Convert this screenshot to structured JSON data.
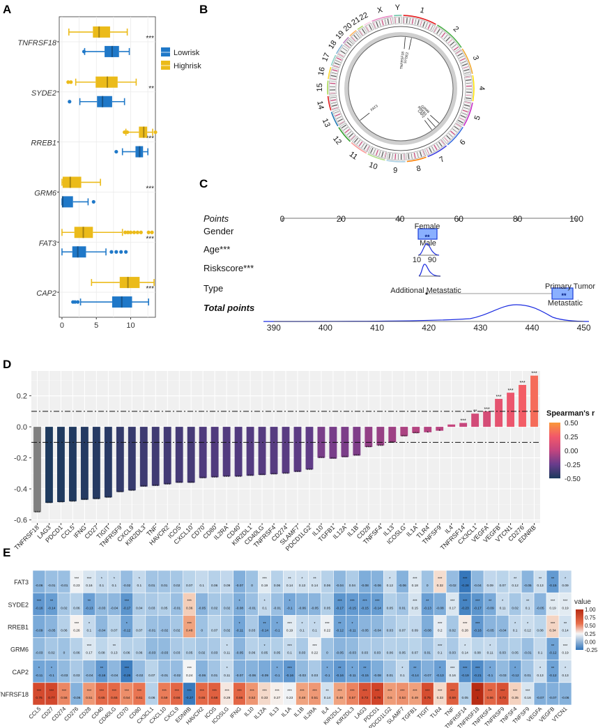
{
  "panels": {
    "A": "A",
    "B": "B",
    "C": "C",
    "D": "D",
    "E": "E"
  },
  "chart_data": [
    {
      "panel": "A",
      "type": "boxplot",
      "orientation": "horizontal",
      "genes": [
        "TNFRSF18",
        "SYDE2",
        "RREB1",
        "GRM6",
        "FAT3",
        "CAP2"
      ],
      "significance": [
        "***",
        "**",
        "***",
        "***",
        "***",
        "***"
      ],
      "legend": {
        "title": "",
        "items": [
          {
            "name": "Lowrisk",
            "color": "#1f78c8"
          },
          {
            "name": "Highrisk",
            "color": "#ebbb1a"
          }
        ]
      },
      "xticks": [
        0,
        5,
        10
      ],
      "xlim": [
        -0.4,
        13.6
      ],
      "boxes": {
        "TNFRSF18": {
          "Highrisk": {
            "wl": 1.0,
            "q1": 4.5,
            "med": 5.4,
            "q3": 7.0,
            "wh": 9.5,
            "out": []
          },
          "Lowrisk": {
            "wl": 3.3,
            "q1": 6.2,
            "med": 7.3,
            "q3": 8.3,
            "wh": 9.8,
            "out": [
              3.2
            ]
          }
        },
        "SYDE2": {
          "Highrisk": {
            "wl": 2.0,
            "q1": 4.9,
            "med": 6.6,
            "q3": 8.1,
            "wh": 10.8,
            "out": [
              0.9,
              1.3
            ]
          },
          "Lowrisk": {
            "wl": 2.6,
            "q1": 5.1,
            "med": 5.9,
            "q3": 7.3,
            "wh": 9.1,
            "out": [
              1.1
            ]
          }
        },
        "RREB1": {
          "Highrisk": {
            "wl": 9.3,
            "q1": 11.2,
            "med": 11.9,
            "q3": 12.4,
            "wh": 13.2,
            "out": [
              9.1,
              9.5,
              13.6
            ]
          },
          "Lowrisk": {
            "wl": 8.8,
            "q1": 10.7,
            "med": 11.3,
            "q3": 11.8,
            "wh": 12.5,
            "out": [
              7.9
            ]
          }
        },
        "GRM6": {
          "Highrisk": {
            "wl": 0.0,
            "q1": 0.1,
            "med": 1.2,
            "q3": 2.8,
            "wh": 5.6,
            "out": []
          },
          "Lowrisk": {
            "wl": 0.0,
            "q1": 0.0,
            "med": 0.1,
            "q3": 1.6,
            "wh": 3.8,
            "out": [
              4.6
            ]
          }
        },
        "FAT3": {
          "Highrisk": {
            "wl": 0.0,
            "q1": 1.8,
            "med": 3.1,
            "q3": 4.5,
            "wh": 8.8,
            "out": [
              9.2,
              9.6,
              10.0,
              10.5,
              11.0,
              11.5,
              12.6,
              13.1
            ]
          },
          "Lowrisk": {
            "wl": 0.0,
            "q1": 1.5,
            "med": 2.3,
            "q3": 3.5,
            "wh": 6.4,
            "out": [
              7.2,
              7.9,
              8.6,
              9.3
            ]
          }
        },
        "CAP2": {
          "Highrisk": {
            "wl": 4.3,
            "q1": 8.4,
            "med": 9.6,
            "q3": 11.3,
            "wh": 13.4,
            "out": []
          },
          "Lowrisk": {
            "wl": 2.7,
            "q1": 7.3,
            "med": 8.7,
            "q3": 10.2,
            "wh": 12.6,
            "out": [
              1.6,
              1.9,
              2.3
            ]
          }
        }
      }
    },
    {
      "panel": "B",
      "type": "circos",
      "chromosomes": [
        "1",
        "2",
        "3",
        "4",
        "5",
        "6",
        "7",
        "8",
        "9",
        "10",
        "11",
        "12",
        "13",
        "14",
        "15",
        "16",
        "17",
        "18",
        "19",
        "20",
        "21",
        "22",
        "X",
        "Y"
      ],
      "labels": [
        "TNFRSF18",
        "SYDE2",
        "GRM6",
        "RREB1",
        "CAP2",
        "FAT3"
      ]
    },
    {
      "panel": "C",
      "type": "nomogram",
      "rows": {
        "points": "Points",
        "gender": "Gender",
        "age": "Age***",
        "risk": "Riskscore***",
        "type": "Type",
        "total": "Total points"
      },
      "points_axis": [
        0,
        20,
        40,
        60,
        80,
        100
      ],
      "total_axis": [
        390,
        400,
        410,
        420,
        430,
        440,
        450
      ],
      "gender_levels": [
        "Female",
        "Male"
      ],
      "age_levels": [
        "10",
        "90"
      ],
      "type_levels": [
        "Additional Metastatic",
        "Primary Tumor",
        "Metastatic"
      ],
      "markers": [
        "**",
        "**"
      ]
    },
    {
      "panel": "D",
      "type": "bar",
      "categories": [
        "TNFRSF18",
        "LAG3",
        "PDCD1",
        "CCL5",
        "IFNG",
        "CD27",
        "TIGIT",
        "TNFRSF9",
        "CXCL9",
        "KIR2DL3",
        "TNF",
        "HAVCR2",
        "ICOS",
        "CXCL10",
        "CD70",
        "CD80",
        "IL2RA",
        "CD40",
        "KIR2DL1",
        "CD40LG",
        "TNFRSF4",
        "CD274",
        "SLAMF7",
        "PDCD1LG2",
        "IL10",
        "TGFB1",
        "IL12A",
        "IL1B",
        "CD28",
        "TNFSF4",
        "IL13",
        "ICOSLG",
        "IL1A",
        "TLR4",
        "TNFSF9",
        "IL4",
        "TNFRSF14",
        "CX3CL1",
        "VEGFA",
        "VEGFB",
        "VTCN1",
        "CD276",
        "EDNRB"
      ],
      "values": [
        -0.55,
        -0.49,
        -0.485,
        -0.48,
        -0.47,
        -0.465,
        -0.455,
        -0.42,
        -0.41,
        -0.385,
        -0.38,
        -0.37,
        -0.36,
        -0.36,
        -0.33,
        -0.325,
        -0.32,
        -0.32,
        -0.315,
        -0.31,
        -0.305,
        -0.3,
        -0.29,
        -0.275,
        -0.2,
        -0.205,
        -0.195,
        -0.185,
        -0.13,
        -0.12,
        -0.1,
        -0.06,
        -0.04,
        -0.035,
        -0.025,
        0.015,
        0.025,
        0.085,
        0.1,
        0.18,
        0.22,
        0.27,
        0.33
      ],
      "sig": [
        "***",
        "***",
        "***",
        "***",
        "***",
        "***",
        "***",
        "***",
        "***",
        "***",
        "***",
        "***",
        "***",
        "***",
        "***",
        "***",
        "***",
        "***",
        "***",
        "***",
        "***",
        "***",
        "***",
        "***",
        "***",
        "***",
        "***",
        "***",
        "***",
        "***",
        "***",
        "***",
        "***",
        "*",
        "*",
        "",
        "***",
        "**",
        "***",
        "***",
        "***",
        "***",
        "***"
      ],
      "ylim": [
        -0.62,
        0.36
      ],
      "yticks": [
        -0.6,
        -0.4,
        -0.2,
        0.0,
        0.2
      ],
      "thresholds": [
        0.1,
        -0.1
      ],
      "legend": {
        "title": "Spearman's r",
        "ticks": [
          0.5,
          0.25,
          0.0,
          -0.25,
          -0.5
        ],
        "colors": [
          "#fa9839",
          "#f2586a",
          "#c2457f",
          "#683c8c",
          "#1b3a5c"
        ]
      },
      "gray_bar": "#808080"
    },
    {
      "panel": "E",
      "type": "heatmap",
      "rows": [
        "FAT3",
        "SYDE2",
        "RREB1",
        "GRM6",
        "CAP2",
        "TNFRSF18"
      ],
      "columns": [
        "CCL5",
        "CD27",
        "CD274",
        "CD276",
        "CD28",
        "CD40",
        "CD40LG",
        "CD70",
        "CD80",
        "CX3CL1",
        "CXCL10",
        "CXCL9",
        "EDNRB",
        "HAVCR2",
        "ICOS",
        "ICOSLG",
        "IFNG",
        "IL10",
        "IL12A",
        "IL13",
        "IL1A",
        "IL1B",
        "IL2RA",
        "IL4",
        "KIR2DL1",
        "KIR2DL3",
        "LAG3",
        "PDCD1",
        "PDCD1LG2",
        "SLAMF7",
        "TGFB1",
        "TIGIT",
        "TLR4",
        "TNF",
        "TNFRSF14",
        "TNFRSF18",
        "TNFRSF4",
        "TNFRSF9",
        "TNFSF4",
        "TNFSF9",
        "VEGFA",
        "VEGFB",
        "VTCN1"
      ],
      "values": [
        [
          -0.06,
          -0.01,
          -0.01,
          0.23,
          0.16,
          0.1,
          0.1,
          -0.02,
          0.1,
          0.01,
          0.01,
          0.02,
          0.07,
          0.1,
          0.06,
          0.09,
          -0.07,
          0.0,
          0.19,
          0.06,
          0.14,
          0.13,
          0.14,
          0.06,
          -0.04,
          0.04,
          -0.08,
          -0.06,
          0.12,
          -0.06,
          0.18,
          0.0,
          0.32,
          -0.02,
          -0.28,
          -0.04,
          0.09,
          0.07,
          0.12,
          -0.05,
          0.13,
          -0.15,
          0.09
        ],
        [
          -0.16,
          -0.14,
          0.02,
          0.06,
          -0.13,
          -0.03,
          -0.04,
          -0.17,
          0.04,
          0.03,
          0.05,
          -0.01,
          0.36,
          -0.05,
          0.02,
          0.02,
          -0.08,
          -0.01,
          0.1,
          -0.01,
          -0.1,
          -0.06,
          -0.05,
          0.05,
          -0.17,
          -0.15,
          -0.15,
          -0.14,
          0.05,
          0.01,
          0.15,
          -0.13,
          -0.08,
          0.17,
          -0.23,
          -0.17,
          -0.09,
          0.11,
          0.02,
          0.1,
          -0.05,
          0.19,
          0.19
        ],
        [
          -0.09,
          -0.05,
          0.06,
          0.26,
          0.1,
          -0.04,
          0.07,
          -0.12,
          0.07,
          -0.01,
          -0.02,
          0.02,
          0.48,
          0.0,
          0.07,
          0.02,
          -0.11,
          0.03,
          -0.14,
          -0.1,
          0.19,
          0.1,
          0.1,
          0.22,
          -0.12,
          -0.11,
          -0.05,
          -0.04,
          0.03,
          0.07,
          0.09,
          -0.08,
          0.2,
          0.02,
          0.28,
          -0.16,
          -0.05,
          -0.04,
          0.1,
          0.12,
          0.08,
          0.34,
          0.14
        ],
        [
          -0.03,
          0.02,
          0.0,
          0.06,
          0.17,
          0.08,
          0.13,
          0.06,
          0.06,
          -0.03,
          -0.03,
          0.03,
          0.05,
          0.02,
          0.03,
          0.11,
          -0.05,
          0.06,
          0.05,
          0.05,
          0.1,
          0.03,
          0.22,
          0.0,
          -0.05,
          -0.03,
          0.03,
          0.03,
          0.06,
          0.05,
          0.07,
          0.01,
          0.1,
          0.03,
          0.14,
          0.08,
          0.11,
          0.03,
          0.05,
          -0.01,
          0.1,
          -0.12,
          0.19
        ],
        [
          -0.11,
          -0.1,
          -0.03,
          0.03,
          -0.04,
          -0.16,
          -0.04,
          -0.26,
          -0.02,
          0.07,
          -0.01,
          -0.02,
          0.24,
          -0.06,
          0.01,
          0.11,
          -0.07,
          -0.06,
          -0.09,
          -0.1,
          -0.16,
          -0.03,
          0.03,
          -0.1,
          -0.16,
          -0.11,
          -0.15,
          -0.08,
          0.01,
          0.1,
          -0.14,
          -0.07,
          -0.13,
          0.16,
          -0.19,
          -0.21,
          -0.1,
          -0.03,
          -0.12,
          0.01,
          0.13,
          -0.12,
          0.13
        ],
        [
          0.76,
          0.77,
          0.56,
          -0.06,
          0.51,
          0.65,
          0.65,
          0.54,
          0.61,
          0.06,
          0.59,
          0.66,
          -0.27,
          0.65,
          0.68,
          0.29,
          0.66,
          0.52,
          0.33,
          0.27,
          0.23,
          0.48,
          0.51,
          0.14,
          0.48,
          0.57,
          0.73,
          0.78,
          0.5,
          0.53,
          0.49,
          0.75,
          0.33,
          0.69,
          0.05,
          1.0,
          0.66,
          0.73,
          0.35,
          0.16,
          -0.07,
          -0.07,
          -0.06
        ]
      ],
      "sig": [
        [
          "",
          "",
          "",
          "***",
          "***",
          "*",
          "*",
          "",
          "*",
          "",
          "",
          "",
          "",
          "",
          "",
          "",
          "",
          "",
          "***",
          "",
          "**",
          "*",
          "**",
          "",
          "",
          "",
          "",
          "",
          "*",
          "",
          "***",
          "",
          "***",
          "",
          "***",
          "",
          "",
          "",
          "**",
          "",
          "**",
          "**",
          "*"
        ],
        [
          "***",
          "**",
          "",
          "",
          "**",
          "",
          "",
          "***",
          "",
          "",
          "",
          "",
          "***",
          "",
          "",
          "",
          "*",
          "",
          "*",
          "",
          "*",
          "",
          "",
          "",
          "***",
          "***",
          "***",
          "***",
          "",
          "",
          "***",
          "**",
          "",
          "***",
          "***",
          "***",
          "**",
          "*",
          "",
          "**",
          "",
          "***",
          "***"
        ],
        [
          "",
          "",
          "",
          "***",
          "*",
          "",
          "",
          "*",
          "",
          "",
          "",
          "",
          "***",
          "",
          "",
          "",
          "*",
          "",
          "**",
          "*",
          "***",
          "*",
          "*",
          "***",
          "**",
          "*",
          "",
          "",
          "",
          "",
          "",
          "",
          "***",
          "",
          "***",
          "***",
          "",
          "",
          "*",
          "*",
          "",
          "***",
          "**"
        ],
        [
          "",
          "",
          "",
          "",
          "***",
          "",
          "**",
          "",
          "",
          "",
          "",
          "",
          "",
          "",
          "",
          "*",
          "",
          "",
          "*",
          "",
          "***",
          "",
          "***",
          "",
          "",
          "",
          "",
          "",
          "",
          "",
          "",
          "",
          "***",
          "",
          "*",
          "",
          "*",
          "",
          "",
          "",
          "",
          "**",
          "***"
        ],
        [
          "*",
          "*",
          "",
          "",
          "",
          "**",
          "",
          "***",
          "",
          "",
          "",
          "",
          "***",
          "",
          "",
          "*",
          "",
          "",
          "",
          "*",
          "***",
          "",
          "",
          "*",
          "**",
          "*",
          "**",
          "",
          "",
          "*",
          "**",
          "",
          "*",
          "***",
          "***",
          "***",
          "*",
          "",
          "*",
          "",
          "*",
          "**",
          "*"
        ],
        [
          "***",
          "***",
          "***",
          "",
          "***",
          "***",
          "***",
          "***",
          "***",
          "",
          "***",
          "***",
          "***",
          "***",
          "***",
          "***",
          "***",
          "***",
          "***",
          "***",
          "***",
          "***",
          "***",
          "**",
          "***",
          "***",
          "***",
          "***",
          "***",
          "***",
          "***",
          "***",
          "***",
          "***",
          "",
          "***",
          "***",
          "***",
          "***",
          "***",
          "",
          "",
          ""
        ]
      ],
      "legend": {
        "title": "value",
        "ticks": [
          "1.00",
          "0.75",
          "0.50",
          "0.25",
          "0.00",
          "-0.25"
        ]
      }
    }
  ]
}
